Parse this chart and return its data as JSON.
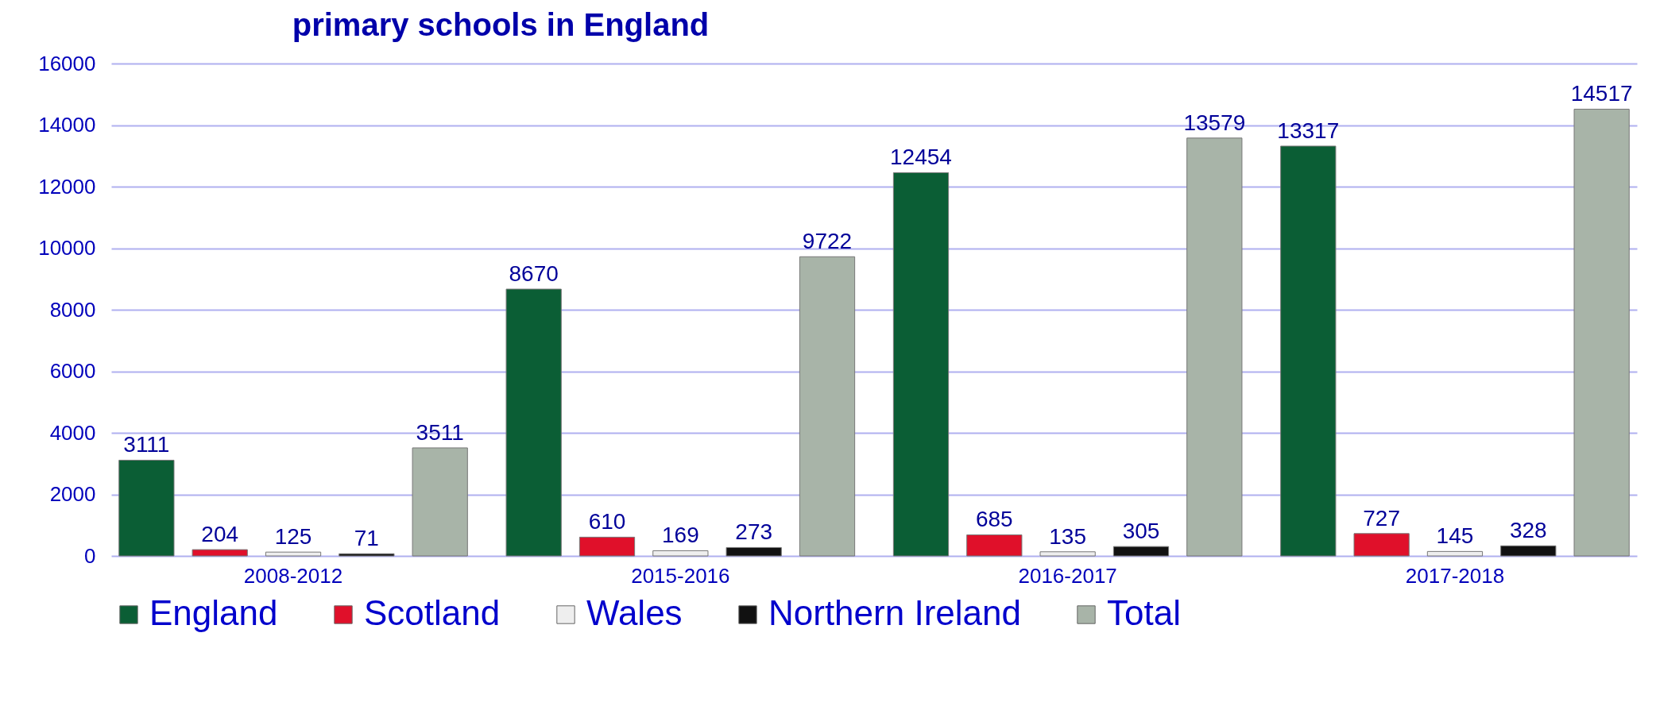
{
  "chart_data": {
    "type": "bar",
    "title": "primary schools in England",
    "categories": [
      "2008-2012",
      "2015-2016",
      "2016-2017",
      "2017-2018"
    ],
    "series": [
      {
        "name": "England",
        "color": "#0b5e35",
        "values": [
          3111,
          8670,
          12454,
          13317
        ]
      },
      {
        "name": "Scotland",
        "color": "#e0102a",
        "values": [
          204,
          610,
          685,
          727
        ]
      },
      {
        "name": "Wales",
        "color": "#eeeeee",
        "values": [
          125,
          169,
          135,
          145
        ]
      },
      {
        "name": "Northern Ireland",
        "color": "#111111",
        "values": [
          71,
          273,
          305,
          328
        ]
      },
      {
        "name": "Total",
        "color": "#a8b4a8",
        "values": [
          3511,
          9722,
          13579,
          14517
        ]
      }
    ],
    "ylim": [
      0,
      16000
    ],
    "yticks": [
      0,
      2000,
      4000,
      6000,
      8000,
      10000,
      12000,
      14000,
      16000
    ],
    "grid": "y",
    "legend": "bottom",
    "data_labels": true
  }
}
